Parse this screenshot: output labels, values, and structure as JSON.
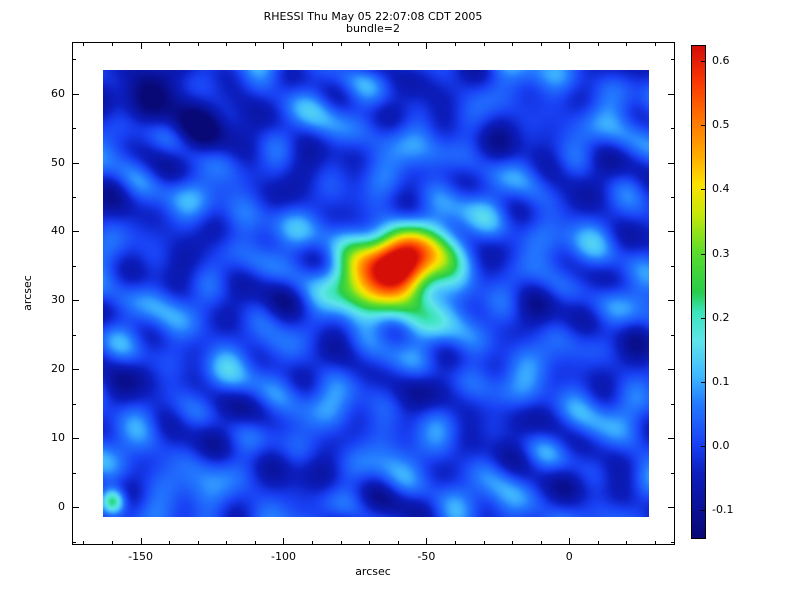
{
  "chart_data": {
    "type": "heatmap",
    "title": "RHESSI Thu May 05 22:07:08 CDT 2005",
    "subtitle": "bundle=2",
    "xlabel": "arcsec",
    "ylabel": "arcsec",
    "x_range": [
      -174,
      37
    ],
    "y_range": [
      -5.5,
      67.5
    ],
    "image_extent": {
      "x": [
        -163,
        28
      ],
      "y": [
        -1.5,
        63.5
      ]
    },
    "x_ticks": [
      -150,
      -100,
      -50,
      0
    ],
    "x_tick_labels": [
      "-150",
      "-100",
      "-50",
      "0"
    ],
    "x_minor_step": 10,
    "y_ticks": [
      0,
      10,
      20,
      30,
      40,
      50,
      60
    ],
    "y_tick_labels": [
      "0",
      "10",
      "20",
      "30",
      "40",
      "50",
      "60"
    ],
    "y_minor_step": 5,
    "colorbar": {
      "min": -0.145,
      "max": 0.625,
      "ticks": [
        -0.1,
        0.0,
        0.1,
        0.2,
        0.3,
        0.4,
        0.5,
        0.6
      ],
      "tick_labels": [
        "-0.1",
        "0.0",
        "0.1",
        "0.2",
        "0.3",
        "0.4",
        "0.5",
        "0.6"
      ]
    },
    "field": {
      "base": 0.005,
      "blobs": [
        {
          "a": 0.5,
          "x": -59,
          "y": 35.8,
          "sx": 9,
          "sy": 3.4
        },
        {
          "a": 0.26,
          "x": -71,
          "y": 33.5,
          "sx": 9,
          "sy": 3.6
        },
        {
          "a": 0.22,
          "x": -46,
          "y": 36.5,
          "sx": 9,
          "sy": 3.2
        },
        {
          "a": 0.12,
          "x": -60,
          "y": 29.5,
          "sx": 13,
          "sy": 4
        },
        {
          "a": -0.1,
          "x": -138,
          "y": 57.5,
          "sx": 16,
          "sy": 4.5
        },
        {
          "a": 0.27,
          "x": -159.5,
          "y": 0.8,
          "sx": 3,
          "sy": 1.3
        }
      ],
      "waves": [
        {
          "a": 0.034,
          "fx": 0.0105,
          "fy": 0.0455,
          "p": 1.7
        },
        {
          "a": 0.03,
          "fx": 0.019,
          "fy": -0.07,
          "p": 4.1
        },
        {
          "a": 0.026,
          "fx": 0.031,
          "fy": 0.111,
          "p": 2.3
        },
        {
          "a": 0.022,
          "fx": 0.047,
          "fy": -0.059,
          "p": 5.2
        },
        {
          "a": 0.02,
          "fx": 0.013,
          "fy": 0.125,
          "p": 0.9
        },
        {
          "a": 0.016,
          "fx": 0.036,
          "fy": 0.083,
          "p": 3.6
        },
        {
          "a": 0.013,
          "fx": 0.058,
          "fy": 0.031,
          "p": 2.0
        },
        {
          "a": 0.01,
          "fx": 0.024,
          "fy": 0.16,
          "p": 5.8
        }
      ]
    },
    "colormap": [
      [
        0.0,
        [
          8,
          8,
          118
        ]
      ],
      [
        0.13,
        [
          12,
          30,
          190
        ]
      ],
      [
        0.19,
        [
          25,
          65,
          245
        ]
      ],
      [
        0.27,
        [
          35,
          120,
          255
        ]
      ],
      [
        0.33,
        [
          65,
          185,
          255
        ]
      ],
      [
        0.4,
        [
          95,
          228,
          235
        ]
      ],
      [
        0.46,
        [
          60,
          228,
          185
        ]
      ],
      [
        0.5,
        [
          40,
          205,
          75
        ]
      ],
      [
        0.58,
        [
          90,
          220,
          45
        ]
      ],
      [
        0.66,
        [
          200,
          232,
          10
        ]
      ],
      [
        0.72,
        [
          255,
          225,
          0
        ]
      ],
      [
        0.78,
        [
          255,
          170,
          0
        ]
      ],
      [
        0.86,
        [
          255,
          110,
          0
        ]
      ],
      [
        0.93,
        [
          250,
          55,
          5
        ]
      ],
      [
        1.0,
        [
          213,
          15,
          8
        ]
      ]
    ]
  }
}
